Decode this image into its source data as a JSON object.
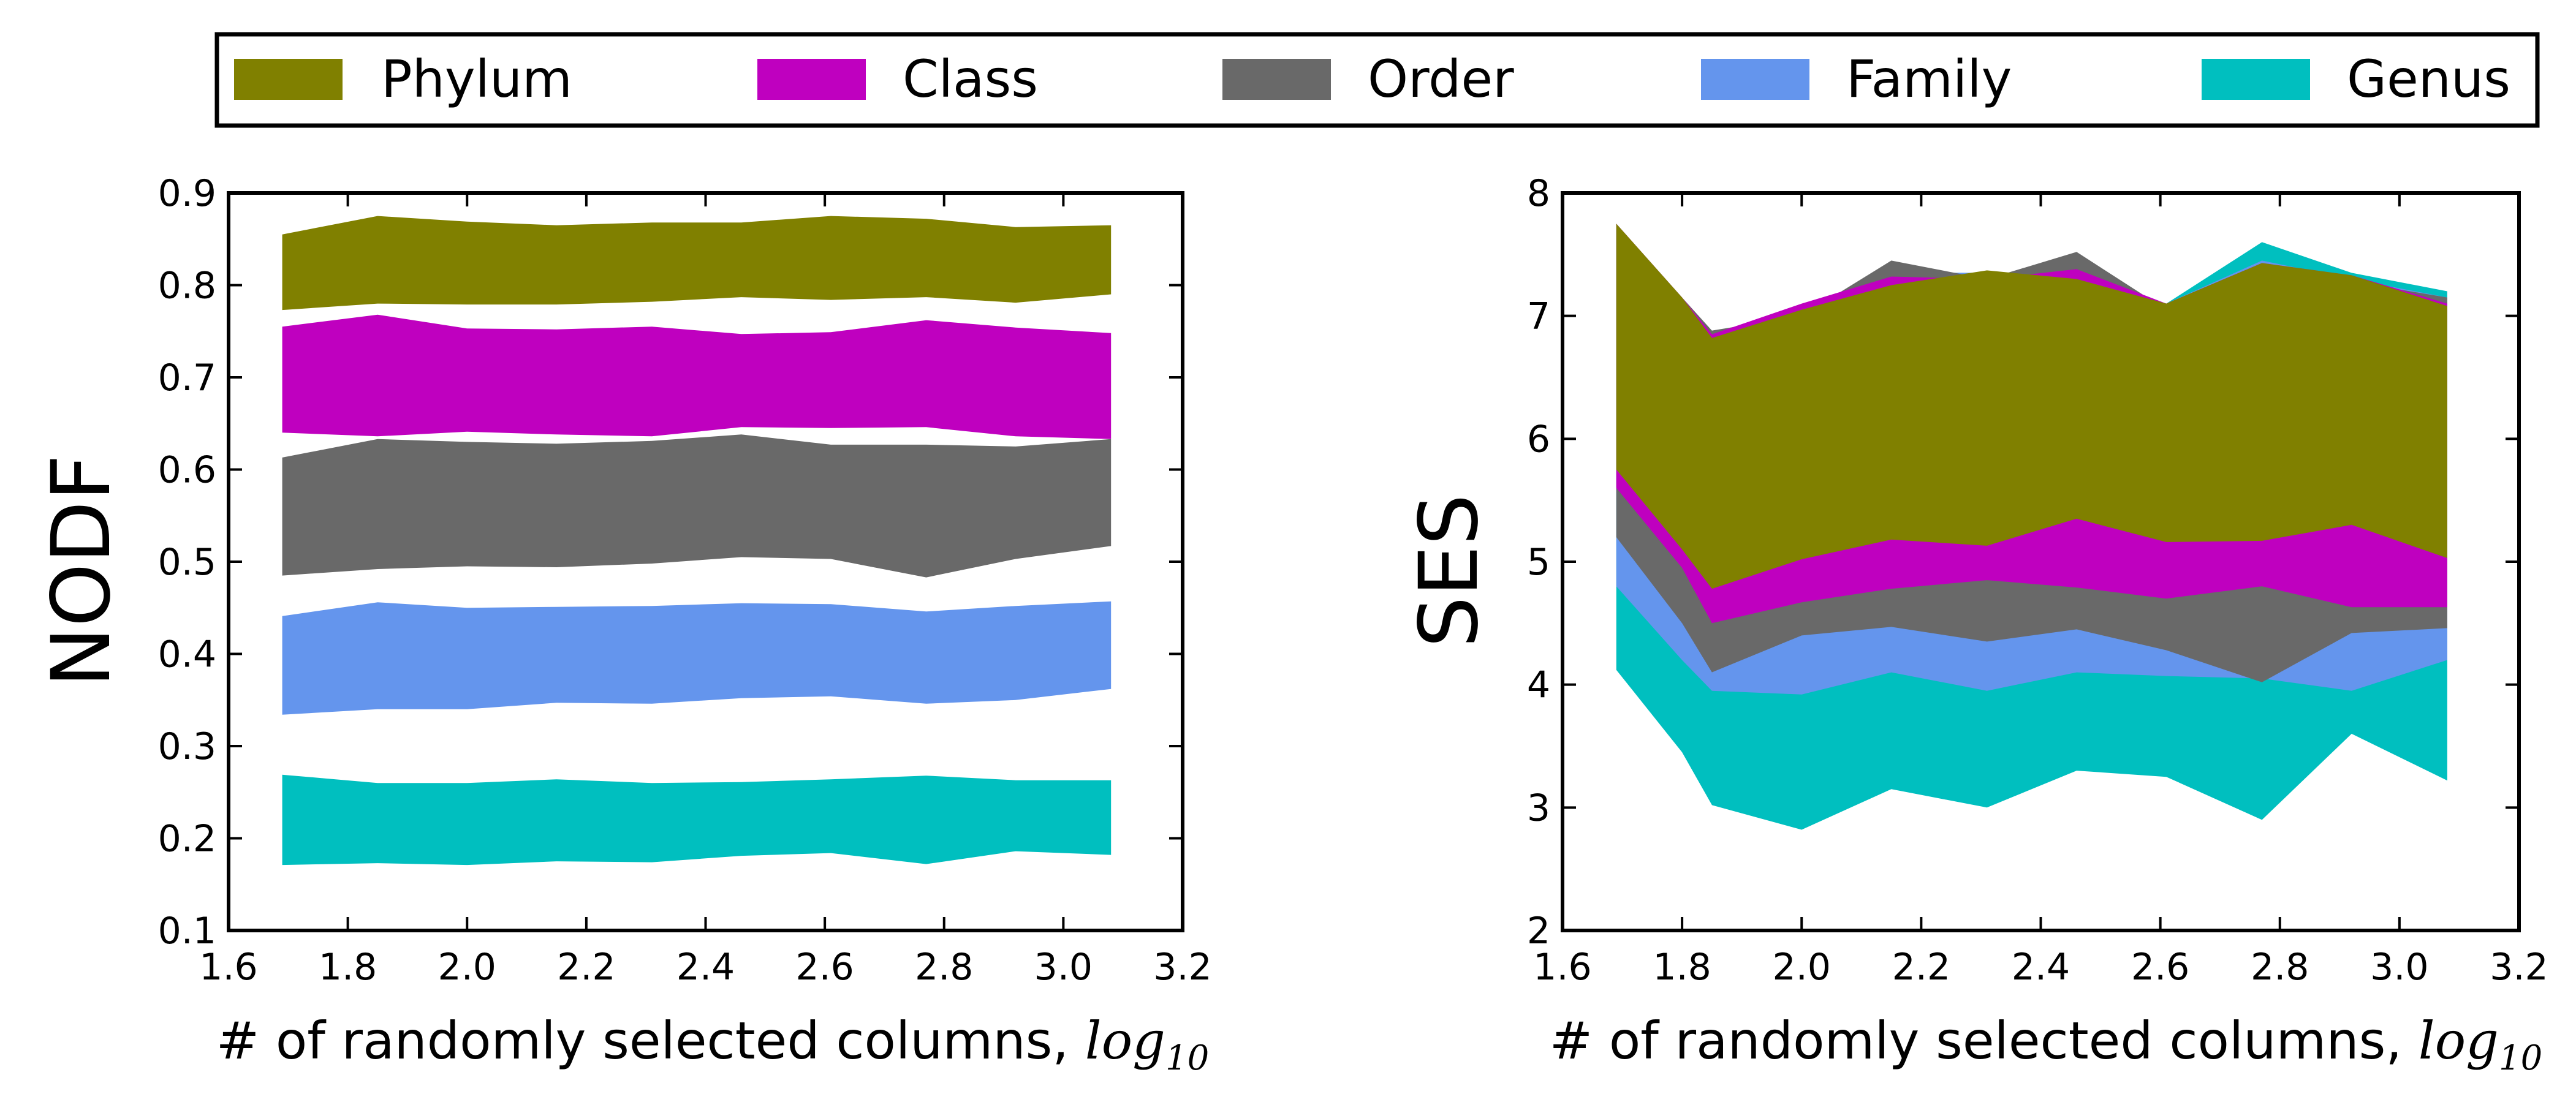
{
  "legend": {
    "items": [
      {
        "label": "Phylum",
        "color": "#808000"
      },
      {
        "label": "Class",
        "color": "#bf00bf"
      },
      {
        "label": "Order",
        "color": "#696969"
      },
      {
        "label": "Family",
        "color": "#6495ed"
      },
      {
        "label": "Genus",
        "color": "#00bfbf"
      }
    ]
  },
  "chart_data": [
    {
      "type": "area",
      "xlabel_text": "# of randomly selected columns, ",
      "xlabel_math": "log",
      "xlabel_math_sub": "10",
      "ylabel": "NODF",
      "xlim": [
        1.6,
        3.2
      ],
      "ylim": [
        0.1,
        0.9
      ],
      "x_ticks": [
        "1.6",
        "1.8",
        "2.0",
        "2.2",
        "2.4",
        "2.6",
        "2.8",
        "3.0",
        "3.2"
      ],
      "y_ticks": [
        "0.1",
        "0.2",
        "0.3",
        "0.4",
        "0.5",
        "0.6",
        "0.7",
        "0.8",
        "0.9"
      ],
      "x": [
        1.69,
        1.85,
        2.0,
        2.15,
        2.31,
        2.46,
        2.61,
        2.77,
        2.92,
        3.08
      ],
      "series": [
        {
          "name": "Phylum",
          "color": "#808000",
          "upper": [
            0.855,
            0.875,
            0.869,
            0.865,
            0.868,
            0.868,
            0.875,
            0.872,
            0.863,
            0.865
          ],
          "lower": [
            0.773,
            0.78,
            0.779,
            0.779,
            0.782,
            0.787,
            0.784,
            0.787,
            0.781,
            0.79
          ]
        },
        {
          "name": "Class",
          "color": "#bf00bf",
          "upper": [
            0.755,
            0.768,
            0.753,
            0.752,
            0.755,
            0.747,
            0.749,
            0.762,
            0.754,
            0.748
          ],
          "lower": [
            0.64,
            0.636,
            0.641,
            0.638,
            0.636,
            0.646,
            0.645,
            0.646,
            0.636,
            0.633
          ]
        },
        {
          "name": "Order",
          "color": "#696969",
          "upper": [
            0.613,
            0.633,
            0.63,
            0.628,
            0.631,
            0.638,
            0.627,
            0.627,
            0.625,
            0.633
          ],
          "lower": [
            0.485,
            0.492,
            0.495,
            0.494,
            0.498,
            0.505,
            0.503,
            0.483,
            0.503,
            0.517
          ]
        },
        {
          "name": "Family",
          "color": "#6495ed",
          "upper": [
            0.441,
            0.456,
            0.45,
            0.451,
            0.452,
            0.455,
            0.454,
            0.446,
            0.452,
            0.457
          ],
          "lower": [
            0.334,
            0.34,
            0.34,
            0.347,
            0.346,
            0.352,
            0.354,
            0.346,
            0.35,
            0.362
          ]
        },
        {
          "name": "Genus",
          "color": "#00bfbf",
          "upper": [
            0.269,
            0.26,
            0.26,
            0.264,
            0.26,
            0.261,
            0.264,
            0.268,
            0.263,
            0.263
          ],
          "lower": [
            0.171,
            0.173,
            0.171,
            0.175,
            0.174,
            0.181,
            0.184,
            0.172,
            0.186,
            0.182
          ]
        }
      ]
    },
    {
      "type": "area",
      "xlabel_text": "# of randomly selected columns, ",
      "xlabel_math": "log",
      "xlabel_math_sub": "10",
      "ylabel": "SES",
      "xlim": [
        1.6,
        3.2
      ],
      "ylim": [
        2,
        8
      ],
      "x_ticks": [
        "1.6",
        "1.8",
        "2.0",
        "2.2",
        "2.4",
        "2.6",
        "2.8",
        "3.0",
        "3.2"
      ],
      "y_ticks": [
        "2",
        "3",
        "4",
        "5",
        "6",
        "7",
        "8"
      ],
      "x": [
        1.69,
        1.8,
        1.85,
        2.0,
        2.15,
        2.31,
        2.46,
        2.61,
        2.77,
        2.92,
        3.08
      ],
      "series": [
        {
          "name": "Genus",
          "color": "#00bfbf",
          "upper": [
            7.7,
            7.1,
            6.83,
            7.05,
            7.35,
            7.35,
            7.3,
            7.1,
            7.6,
            7.35,
            7.2
          ],
          "lower": [
            4.12,
            3.45,
            3.02,
            2.82,
            3.15,
            3.0,
            3.3,
            3.25,
            2.9,
            3.6,
            3.22
          ]
        },
        {
          "name": "Family",
          "color": "#6495ed",
          "upper": [
            7.7,
            7.1,
            6.83,
            7.05,
            7.35,
            7.35,
            7.3,
            7.1,
            7.45,
            7.3,
            7.15
          ],
          "lower": [
            4.8,
            4.2,
            3.95,
            3.92,
            4.1,
            3.95,
            4.1,
            4.07,
            4.05,
            3.95,
            4.2
          ]
        },
        {
          "name": "Order",
          "color": "#696969",
          "upper": [
            7.75,
            7.15,
            6.88,
            7.0,
            7.45,
            7.3,
            7.52,
            7.05,
            7.38,
            7.28,
            7.15
          ],
          "lower": [
            5.2,
            4.5,
            4.1,
            4.4,
            4.47,
            4.35,
            4.45,
            4.28,
            4.02,
            4.42,
            4.46
          ]
        },
        {
          "name": "Class",
          "color": "#bf00bf",
          "upper": [
            7.75,
            7.15,
            6.85,
            7.1,
            7.32,
            7.3,
            7.38,
            7.1,
            7.43,
            7.33,
            7.1
          ],
          "lower": [
            5.6,
            4.95,
            4.5,
            4.67,
            4.78,
            4.85,
            4.79,
            4.7,
            4.8,
            4.63,
            4.63
          ]
        },
        {
          "name": "Phylum",
          "color": "#808000",
          "upper": [
            7.75,
            7.15,
            6.82,
            7.05,
            7.25,
            7.37,
            7.3,
            7.1,
            7.43,
            7.33,
            7.08
          ],
          "lower": [
            5.75,
            5.1,
            4.78,
            5.02,
            5.18,
            5.13,
            5.35,
            5.16,
            5.17,
            5.3,
            5.03
          ]
        }
      ]
    }
  ]
}
